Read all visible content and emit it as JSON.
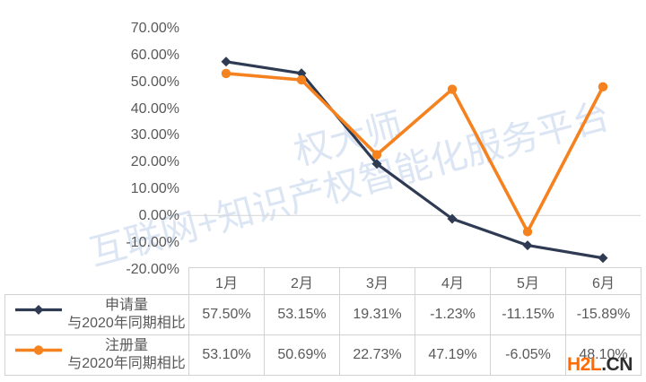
{
  "chart_data": {
    "type": "line",
    "title": "",
    "xlabel": "",
    "ylabel": "",
    "categories": [
      "1月",
      "2月",
      "3月",
      "4月",
      "5月",
      "6月"
    ],
    "series": [
      {
        "name": "申请量与2020年同期相比",
        "label_line1": "申请量",
        "label_line2": "与2020年同期相比",
        "values": [
          57.5,
          53.15,
          19.31,
          -1.23,
          -11.15,
          -15.89
        ],
        "values_display": [
          "57.50%",
          "53.15%",
          "19.31%",
          "-1.23%",
          "-11.15%",
          "-15.89%"
        ],
        "color": "#2F3B52",
        "marker": "diamond"
      },
      {
        "name": "注册量与2020年同期相比",
        "label_line1": "注册量",
        "label_line2": "与2020年同期相比",
        "values": [
          53.1,
          50.69,
          22.73,
          47.19,
          -6.05,
          48.1
        ],
        "values_display": [
          "53.10%",
          "50.69%",
          "22.73%",
          "47.19%",
          "-6.05%",
          "48.10%"
        ],
        "color": "#F5821E",
        "marker": "circle"
      }
    ],
    "ylim": [
      -20,
      70
    ],
    "y_ticks": [
      {
        "value": 70,
        "label": "70.00%"
      },
      {
        "value": 60,
        "label": "60.00%"
      },
      {
        "value": 50,
        "label": "50.00%"
      },
      {
        "value": 40,
        "label": "40.00%"
      },
      {
        "value": 30,
        "label": "30.00%"
      },
      {
        "value": 20,
        "label": "20.00%"
      },
      {
        "value": 10,
        "label": "10.00%"
      },
      {
        "value": 0,
        "label": "0.00%"
      },
      {
        "value": -10,
        "label": "-10.00%"
      },
      {
        "value": -20,
        "label": "-20.00%"
      }
    ],
    "grid": "zero-line-only",
    "legend_position": "table-left"
  },
  "watermarks": {
    "brand": "权大师",
    "slogan": "互联网+知识产权智能化服务平台",
    "site_orange": "H2L",
    "site_dark": ".CN"
  },
  "colors": {
    "series1": "#2F3B52",
    "series2": "#F5821E",
    "gridline": "#D9D9D9",
    "table_border": "#D2D2D2",
    "text": "#595959",
    "watermark_blue": "#DBE5F3",
    "site_orange": "#FF6B00",
    "site_dark": "#2E2E2E"
  }
}
